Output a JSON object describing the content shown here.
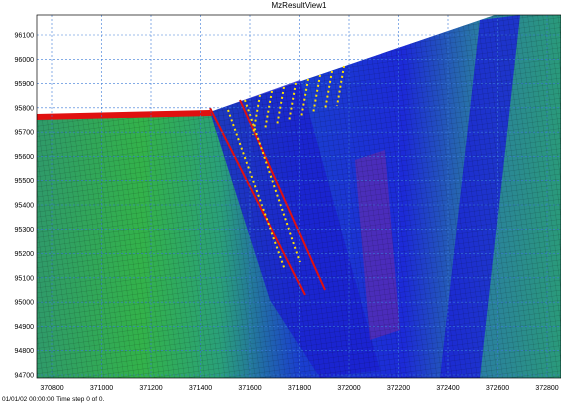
{
  "title": "MzResultView1",
  "xticks": [
    370800,
    371000,
    371200,
    371400,
    371600,
    371800,
    372000,
    372200,
    372400,
    372600,
    372800
  ],
  "yticks": [
    96100,
    96000,
    95900,
    95800,
    95700,
    95600,
    95500,
    95400,
    95300,
    95200,
    95100,
    95000,
    94900,
    94800,
    94700
  ],
  "status": "01/01/02 00:00:00  Time step 0 of 0."
}
